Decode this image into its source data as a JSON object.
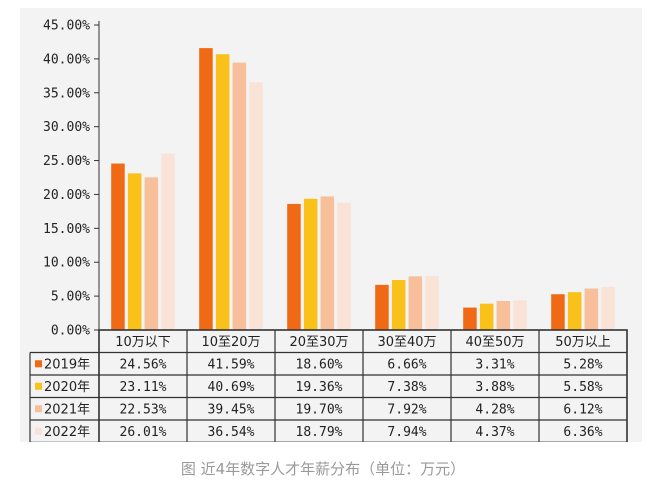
{
  "caption": "图 近4年数字人才年薪分布（单位：万元）",
  "chart_data": {
    "type": "bar",
    "categories": [
      "10万以下",
      "10至20万",
      "20至30万",
      "30至40万",
      "40至50万",
      "50万以上"
    ],
    "series": [
      {
        "name": "2019年",
        "color": "#f06a16",
        "values": [
          24.56,
          41.59,
          18.6,
          6.66,
          3.31,
          5.28
        ],
        "labels": [
          "24.56%",
          "41.59%",
          "18.60%",
          "6.66%",
          "3.31%",
          "5.28%"
        ]
      },
      {
        "name": "2020年",
        "color": "#f9c11a",
        "values": [
          23.11,
          40.69,
          19.36,
          7.38,
          3.88,
          5.58
        ],
        "labels": [
          "23.11%",
          "40.69%",
          "19.36%",
          "7.38%",
          "3.88%",
          "5.58%"
        ]
      },
      {
        "name": "2021年",
        "color": "#f7c09a",
        "values": [
          22.53,
          39.45,
          19.7,
          7.92,
          4.28,
          6.12
        ],
        "labels": [
          "22.53%",
          "39.45%",
          "19.70%",
          "7.92%",
          "4.28%",
          "6.12%"
        ]
      },
      {
        "name": "2022年",
        "color": "#f8e3d6",
        "values": [
          26.01,
          36.54,
          18.79,
          7.94,
          4.37,
          6.36
        ],
        "labels": [
          "26.01%",
          "36.54%",
          "18.79%",
          "7.94%",
          "4.37%",
          "6.36%"
        ]
      }
    ],
    "yticks": [
      "0.00%",
      "5.00%",
      "10.00%",
      "15.00%",
      "20.00%",
      "25.00%",
      "30.00%",
      "35.00%",
      "40.00%",
      "45.00%"
    ],
    "ylim": [
      0,
      45
    ],
    "xlabel": "",
    "ylabel": "",
    "legend": "data-table-left",
    "grid": false
  }
}
